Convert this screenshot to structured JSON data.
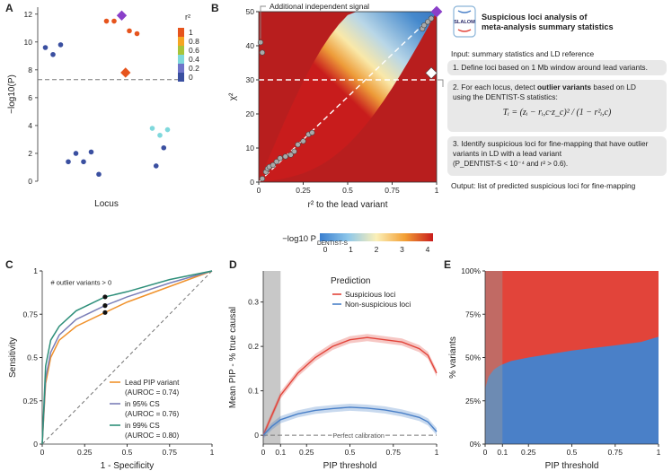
{
  "panel_letters": [
    "A",
    "B",
    "C",
    "D",
    "E"
  ],
  "colors": {
    "r2_0": "#3a4fa0",
    "r2_02": "#6f74c9",
    "r2_04": "#7fd8dc",
    "r2_06": "#a8c43a",
    "r2_08": "#f5a623",
    "r2_1": "#e6541d",
    "lead": "#8a3fc9",
    "suspicious": "#e2443a",
    "nonsuspicious": "#4a80c8",
    "lead_pip": "#f0922c",
    "cs95": "#7b7fb8",
    "cs99": "#2e8f7a",
    "grey": "#c8c8c8",
    "dashed": "#777777"
  },
  "chart_data": [
    {
      "id": "A",
      "type": "scatter",
      "xlabel": "Locus",
      "ylabel": "−log10(P)",
      "ylim": [
        0,
        12.5
      ],
      "yticks": [
        "0",
        "2",
        "4",
        "6",
        "8",
        "10",
        "12"
      ],
      "legend_title": "r²",
      "legend_entries": [
        "1",
        "0.8",
        "0.6",
        "0.4",
        "0.2",
        "0"
      ],
      "threshold": 7.3,
      "points": [
        {
          "x": 1,
          "y": 9.6,
          "c": "r2_0"
        },
        {
          "x": 2,
          "y": 9.1,
          "c": "r2_0"
        },
        {
          "x": 3,
          "y": 9.8,
          "c": "r2_0"
        },
        {
          "x": 4,
          "y": 1.4,
          "c": "r2_0"
        },
        {
          "x": 5,
          "y": 2.0,
          "c": "r2_0"
        },
        {
          "x": 6,
          "y": 1.4,
          "c": "r2_0"
        },
        {
          "x": 7,
          "y": 2.1,
          "c": "r2_0"
        },
        {
          "x": 8,
          "y": 0.5,
          "c": "r2_0"
        },
        {
          "x": 9,
          "y": 11.5,
          "c": "r2_1"
        },
        {
          "x": 10,
          "y": 11.5,
          "c": "r2_1"
        },
        {
          "x": 12,
          "y": 10.8,
          "c": "r2_1"
        },
        {
          "x": 13,
          "y": 10.6,
          "c": "r2_1"
        },
        {
          "x": 15,
          "y": 3.8,
          "c": "r2_04"
        },
        {
          "x": 16,
          "y": 3.3,
          "c": "r2_04"
        },
        {
          "x": 17,
          "y": 3.7,
          "c": "r2_04"
        },
        {
          "x": 15.5,
          "y": 1.1,
          "c": "r2_0"
        },
        {
          "x": 16.5,
          "y": 2.4,
          "c": "r2_0"
        }
      ],
      "lead": {
        "x": 11,
        "y": 11.9
      },
      "secondary": {
        "x": 11.5,
        "y": 7.8
      }
    },
    {
      "id": "B",
      "type": "heatmap",
      "xlabel": "r² to the lead variant",
      "ylabel": "χ²",
      "xlim": [
        0,
        1
      ],
      "ylim": [
        0,
        50
      ],
      "xticks": [
        "0",
        "0.25",
        "0.5",
        "0.75",
        "1"
      ],
      "yticks": [
        "0",
        "10",
        "20",
        "30",
        "40",
        "50"
      ],
      "annotation": "Additional independent signal",
      "colorbar_label": "−log10 P",
      "colorbar_sub": "DENTIST-S",
      "colorbar_ticks": [
        "0",
        "1",
        "2",
        "3",
        "4"
      ],
      "points": [
        [
          0.01,
          41
        ],
        [
          0.02,
          38
        ],
        [
          0.02,
          1
        ],
        [
          0.04,
          3
        ],
        [
          0.05,
          4
        ],
        [
          0.06,
          4.5
        ],
        [
          0.08,
          5
        ],
        [
          0.1,
          6
        ],
        [
          0.12,
          7
        ],
        [
          0.15,
          7.5
        ],
        [
          0.18,
          8
        ],
        [
          0.2,
          9
        ],
        [
          0.22,
          11
        ],
        [
          0.25,
          12
        ],
        [
          0.28,
          14
        ],
        [
          0.3,
          14.5
        ],
        [
          0.92,
          45
        ],
        [
          0.93,
          46
        ],
        [
          0.95,
          47
        ],
        [
          0.97,
          48
        ]
      ],
      "lead": [
        1.0,
        50
      ],
      "outlier": [
        0.97,
        32
      ]
    },
    {
      "id": "C",
      "type": "line",
      "xlabel": "1 - Specificity",
      "ylabel": "Sensitivity",
      "xticks": [
        "0",
        "0.25",
        "0.5",
        "0.75",
        "1"
      ],
      "yticks": [
        "0",
        "0.25",
        "0.5",
        "0.75",
        "1"
      ],
      "annotation": "# outlier variants > 0",
      "series": [
        {
          "name": "Lead PIP variant",
          "sub": "(AUROC = 0.74)",
          "c": "lead_pip",
          "x": [
            0,
            0.02,
            0.05,
            0.1,
            0.2,
            0.37,
            0.5,
            0.75,
            1
          ],
          "y": [
            0,
            0.35,
            0.5,
            0.6,
            0.68,
            0.76,
            0.82,
            0.91,
            1
          ]
        },
        {
          "name": "in 95% CS",
          "sub": "(AUROC = 0.76)",
          "c": "cs95",
          "x": [
            0,
            0.02,
            0.05,
            0.1,
            0.2,
            0.37,
            0.5,
            0.75,
            1
          ],
          "y": [
            0,
            0.38,
            0.53,
            0.63,
            0.72,
            0.8,
            0.85,
            0.93,
            1
          ]
        },
        {
          "name": "in 99% CS",
          "sub": "(AUROC = 0.80)",
          "c": "cs99",
          "x": [
            0,
            0.02,
            0.05,
            0.1,
            0.2,
            0.37,
            0.5,
            0.75,
            1
          ],
          "y": [
            0,
            0.45,
            0.6,
            0.68,
            0.77,
            0.85,
            0.88,
            0.95,
            1
          ]
        }
      ],
      "markers": [
        [
          0.37,
          0.76
        ],
        [
          0.37,
          0.8
        ],
        [
          0.37,
          0.85
        ]
      ]
    },
    {
      "id": "D",
      "type": "line",
      "xlabel": "PIP threshold",
      "ylabel": "Mean PIP - % true causal",
      "xticks": [
        "0",
        "0.1",
        "0.25",
        "0.5",
        "0.75",
        "1"
      ],
      "yticks": [
        "0",
        "0.1",
        "0.2",
        "0.3"
      ],
      "ylim": [
        -0.02,
        0.37
      ],
      "legend_title": "Prediction",
      "calibration_label": "Perfect calibration",
      "series": [
        {
          "name": "Suspicious loci",
          "c": "suspicious",
          "x": [
            0,
            0.05,
            0.1,
            0.2,
            0.3,
            0.4,
            0.5,
            0.6,
            0.7,
            0.8,
            0.9,
            0.95,
            1
          ],
          "y": [
            0,
            0.045,
            0.09,
            0.14,
            0.175,
            0.2,
            0.215,
            0.22,
            0.215,
            0.21,
            0.195,
            0.18,
            0.14
          ]
        },
        {
          "name": "Non-suspicious loci",
          "c": "nonsuspicious",
          "x": [
            0,
            0.05,
            0.1,
            0.2,
            0.3,
            0.4,
            0.5,
            0.6,
            0.7,
            0.8,
            0.9,
            0.95,
            1
          ],
          "y": [
            0,
            0.02,
            0.035,
            0.048,
            0.056,
            0.06,
            0.063,
            0.061,
            0.057,
            0.05,
            0.04,
            0.03,
            0.008
          ]
        }
      ]
    },
    {
      "id": "E",
      "type": "area",
      "xlabel": "PIP threshold",
      "ylabel": "% variants",
      "xticks": [
        "0",
        "0.1",
        "0.25",
        "0.5",
        "0.75",
        "1"
      ],
      "yticks": [
        "0%",
        "25%",
        "50%",
        "75%",
        "100%"
      ],
      "series": [
        {
          "name": "Non-suspicious loci",
          "c": "nonsuspicious",
          "x": [
            0,
            0.02,
            0.05,
            0.08,
            0.1,
            0.15,
            0.25,
            0.5,
            0.75,
            0.9,
            1
          ],
          "y": [
            0.32,
            0.39,
            0.43,
            0.45,
            0.46,
            0.48,
            0.5,
            0.54,
            0.57,
            0.59,
            0.62
          ]
        }
      ]
    }
  ],
  "slalom": {
    "logo_text": "SLALOM",
    "title_line1": "Suspicious loci analysis of",
    "title_line2": "meta-analysis summary statistics",
    "input": "Input: summary statistics and LD reference",
    "step1": "1. Define loci based on 1 Mb window around lead variants.",
    "step2_a": "2. For each locus, detect",
    "step2_bold": "outlier variants",
    "step2_b": "based on LD",
    "step2_c": "using the DENTIST-S statistics:",
    "formula": "Tᵢ = (zᵢ − rᵢ,c·z_c)² / (1 − r²ᵢ,c)",
    "step3_a": "3. Identify suspicious loci for fine-mapping that have outlier",
    "step3_b": "variants in LD with a lead variant",
    "step3_c": "(P_DENTIST-S < 10⁻⁴ and r² > 0.6).",
    "output": "Output: list of predicted suspicious loci for fine-mapping"
  }
}
